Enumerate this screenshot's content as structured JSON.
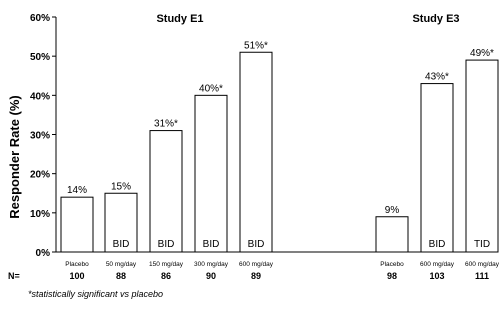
{
  "chart_data": {
    "type": "bar",
    "ylabel": "Responder Rate (%)",
    "ylim": [
      0,
      60
    ],
    "yticks": [
      "0%",
      "10%",
      "20%",
      "30%",
      "40%",
      "50%",
      "60%"
    ],
    "n_label": "N=",
    "groups": [
      {
        "title": "Study E1",
        "bars": [
          {
            "category": "Placebo",
            "value": 14,
            "label": "14%",
            "inner_label": "",
            "n": "100"
          },
          {
            "category": "50 mg/day",
            "value": 15,
            "label": "15%",
            "inner_label": "BID",
            "n": "88"
          },
          {
            "category": "150 mg/day",
            "value": 31,
            "label": "31%*",
            "inner_label": "BID",
            "n": "86"
          },
          {
            "category": "300 mg/day",
            "value": 40,
            "label": "40%*",
            "inner_label": "BID",
            "n": "90"
          },
          {
            "category": "600 mg/day",
            "value": 51,
            "label": "51%*",
            "inner_label": "BID",
            "n": "89"
          }
        ]
      },
      {
        "title": "Study E3",
        "bars": [
          {
            "category": "Placebo",
            "value": 9,
            "label": "9%",
            "inner_label": "",
            "n": "98"
          },
          {
            "category": "600 mg/day",
            "value": 43,
            "label": "43%*",
            "inner_label": "BID",
            "n": "103"
          },
          {
            "category": "600 mg/day",
            "value": 49,
            "label": "49%*",
            "inner_label": "TID",
            "n": "111"
          }
        ]
      }
    ],
    "footnote": "*statistically significant vs placebo"
  }
}
